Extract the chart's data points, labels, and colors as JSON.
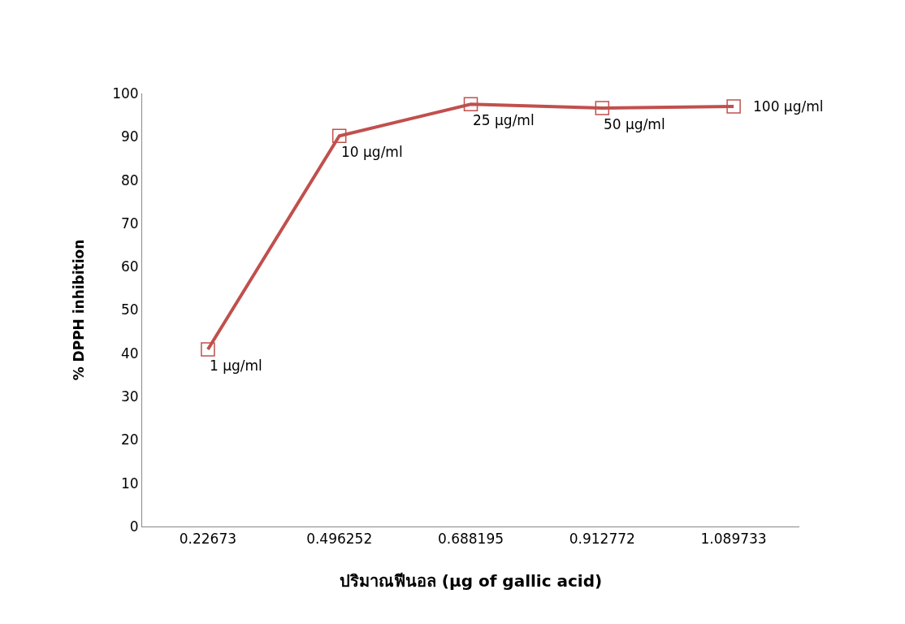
{
  "chart_data": {
    "type": "line",
    "xlabel": "ปริมาณฟีนอล (µg of gallic acid)",
    "ylabel": "% DPPH inhibition",
    "categories": [
      "0.22673",
      "0.496252",
      "0.688195",
      "0.912772",
      "1.089733"
    ],
    "series": [
      {
        "color": "#c0504d",
        "values": [
          40.9,
          90.2,
          97.5,
          96.6,
          97.0
        ]
      }
    ],
    "ylim": [
      0,
      100
    ],
    "yticks": [
      0,
      10,
      20,
      30,
      40,
      50,
      60,
      70,
      80,
      90,
      100
    ],
    "marker": "square",
    "line_style": "solid",
    "annotations": [
      {
        "text": "1 µg/ml",
        "x": "0.22673",
        "y": 40.9
      },
      {
        "text": "10 µg/ml",
        "x": "0.496252",
        "y": 90.2
      },
      {
        "text": "25 µg/ml",
        "x": "0.688195",
        "y": 97.5
      },
      {
        "text": "50 µg/ml",
        "x": "0.912772",
        "y": 96.6
      },
      {
        "text": "100 µg/ml",
        "x": "1.089733",
        "y": 97.0
      }
    ]
  }
}
